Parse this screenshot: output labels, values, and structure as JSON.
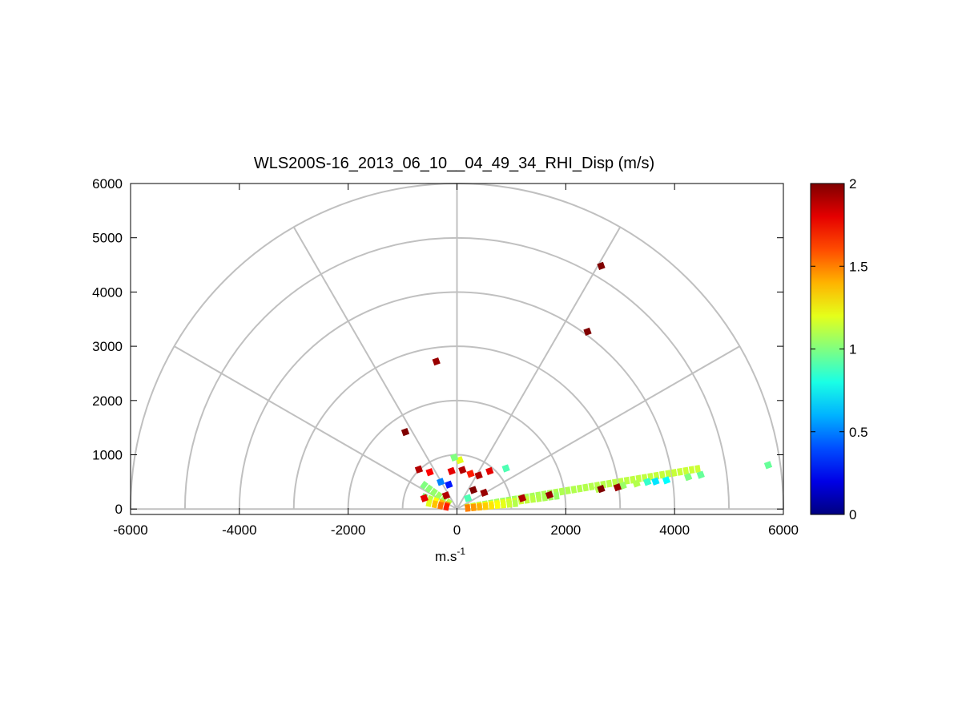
{
  "chart_data": {
    "type": "heatmap",
    "subtype": "polar-rhi-scan",
    "title": "WLS200S-16_2013_06_10__04_49_34_RHI_Disp (m/s)",
    "xlabel": "m.s",
    "xlabel_superscript": "-1",
    "ylabel": "",
    "xlim": [
      -6000,
      6000
    ],
    "ylim": [
      -100,
      6000
    ],
    "xticks": [
      "-6000",
      "-4000",
      "-2000",
      "0",
      "2000",
      "4000",
      "6000"
    ],
    "yticks": [
      "0",
      "1000",
      "2000",
      "3000",
      "4000",
      "5000",
      "6000"
    ],
    "polar_grid": {
      "radii": [
        1000,
        2000,
        3000,
        4000,
        5000,
        6000
      ],
      "spoke_angles_deg": [
        0,
        30,
        60,
        90,
        120,
        150,
        180
      ],
      "color": "#c0c0c0"
    },
    "colorbar": {
      "colormap": "jet",
      "range": [
        0,
        2
      ],
      "ticks": [
        "0",
        "0.5",
        "1",
        "1.5",
        "2"
      ]
    },
    "scan_beams": [
      {
        "elevation_deg": 9.5,
        "range_start": 150,
        "range_end": 4600,
        "value_start": 1.05,
        "value_end": 1.15
      },
      {
        "elevation_deg": 7.5,
        "range_start": 150,
        "range_end": 1900,
        "value_start": 1.3,
        "value_end": 1.05
      },
      {
        "elevation_deg": 5.5,
        "range_start": 150,
        "range_end": 1100,
        "value_start": 1.5,
        "value_end": 1.1
      },
      {
        "elevation_deg": 144,
        "range_start": 150,
        "range_end": 800,
        "value_start": 1.1,
        "value_end": 1.0
      },
      {
        "elevation_deg": 160,
        "range_start": 150,
        "range_end": 700,
        "value_start": 1.5,
        "value_end": 1.0
      },
      {
        "elevation_deg": 168,
        "range_start": 150,
        "range_end": 600,
        "value_start": 1.7,
        "value_end": 1.2
      }
    ],
    "points": [
      {
        "x": 2650,
        "y": 4480,
        "value": 2.0
      },
      {
        "x": 2400,
        "y": 3270,
        "value": 2.0
      },
      {
        "x": -380,
        "y": 2720,
        "value": 1.95
      },
      {
        "x": 5720,
        "y": 810,
        "value": 0.95
      },
      {
        "x": 4480,
        "y": 630,
        "value": 0.95
      },
      {
        "x": 4250,
        "y": 590,
        "value": 1.0
      },
      {
        "x": 3850,
        "y": 530,
        "value": 0.75
      },
      {
        "x": 3650,
        "y": 510,
        "value": 0.7
      },
      {
        "x": 3500,
        "y": 500,
        "value": 0.85
      },
      {
        "x": 3300,
        "y": 470,
        "value": 1.1
      },
      {
        "x": 3050,
        "y": 430,
        "value": 1.05
      },
      {
        "x": 2950,
        "y": 400,
        "value": 1.95
      },
      {
        "x": 2600,
        "y": 370,
        "value": 1.1
      },
      {
        "x": 2650,
        "y": 370,
        "value": 2.0
      },
      {
        "x": 1700,
        "y": 260,
        "value": 1.95
      },
      {
        "x": 1200,
        "y": 200,
        "value": 1.9
      },
      {
        "x": -950,
        "y": 1420,
        "value": 2.0
      },
      {
        "x": -100,
        "y": 700,
        "value": 1.8
      },
      {
        "x": 100,
        "y": 720,
        "value": 1.9
      },
      {
        "x": 250,
        "y": 650,
        "value": 1.7
      },
      {
        "x": 400,
        "y": 620,
        "value": 1.9
      },
      {
        "x": 600,
        "y": 700,
        "value": 1.8
      },
      {
        "x": -500,
        "y": 680,
        "value": 1.75
      },
      {
        "x": -700,
        "y": 730,
        "value": 1.9
      },
      {
        "x": -300,
        "y": 500,
        "value": 0.5
      },
      {
        "x": -150,
        "y": 450,
        "value": 0.3
      },
      {
        "x": 50,
        "y": 900,
        "value": 1.2
      },
      {
        "x": -50,
        "y": 950,
        "value": 1.0
      },
      {
        "x": 900,
        "y": 750,
        "value": 0.9
      },
      {
        "x": 300,
        "y": 350,
        "value": 2.0
      },
      {
        "x": 500,
        "y": 300,
        "value": 1.95
      },
      {
        "x": -200,
        "y": 250,
        "value": 1.9
      },
      {
        "x": 200,
        "y": 200,
        "value": 0.9
      },
      {
        "x": -600,
        "y": 200,
        "value": 1.8
      }
    ]
  }
}
